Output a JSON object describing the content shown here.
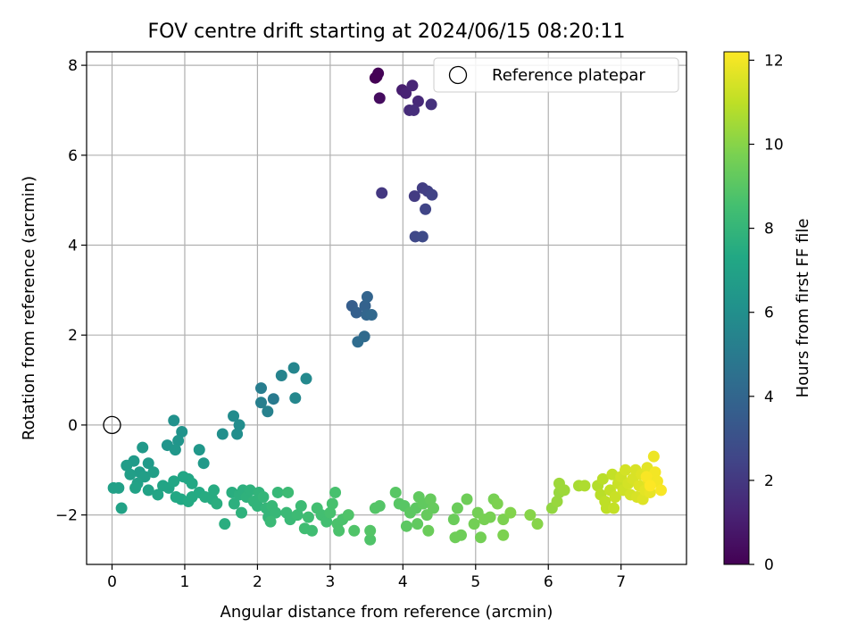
{
  "chart_data": {
    "type": "scatter",
    "title": "FOV centre drift starting at 2024/06/15 08:20:11",
    "xlabel": "Angular distance from reference (arcmin)",
    "ylabel": "Rotation from reference (arcmin)",
    "xlim": [
      -0.35,
      7.9
    ],
    "ylim": [
      -3.1,
      8.3
    ],
    "xticks": [
      0,
      1,
      2,
      3,
      4,
      5,
      6,
      7
    ],
    "yticks": [
      -2,
      0,
      2,
      4,
      6,
      8
    ],
    "grid": true,
    "legend": {
      "entries": [
        "Reference platepar"
      ],
      "placement": "upper-right"
    },
    "reference_point": {
      "x": 0,
      "y": 0,
      "marker": "open-circle"
    },
    "colorbar": {
      "label": "Hours from first FF file",
      "range": [
        0,
        12.2
      ],
      "ticks": [
        0,
        2,
        4,
        6,
        8,
        10,
        12
      ],
      "colormap": "viridis"
    },
    "points": [
      {
        "x": 3.62,
        "y": 7.72,
        "c": 0.0
      },
      {
        "x": 3.66,
        "y": 7.82,
        "c": 0.1
      },
      {
        "x": 3.64,
        "y": 7.75,
        "c": 0.05
      },
      {
        "x": 3.68,
        "y": 7.27,
        "c": 0.4
      },
      {
        "x": 3.99,
        "y": 7.45,
        "c": 1.0
      },
      {
        "x": 4.04,
        "y": 7.38,
        "c": 1.2
      },
      {
        "x": 4.13,
        "y": 7.55,
        "c": 1.3
      },
      {
        "x": 4.21,
        "y": 7.2,
        "c": 1.4
      },
      {
        "x": 4.09,
        "y": 7.0,
        "c": 1.5
      },
      {
        "x": 4.15,
        "y": 7.0,
        "c": 1.6
      },
      {
        "x": 4.39,
        "y": 7.13,
        "c": 1.7
      },
      {
        "x": 3.71,
        "y": 5.16,
        "c": 2.0
      },
      {
        "x": 4.16,
        "y": 5.09,
        "c": 2.1
      },
      {
        "x": 4.27,
        "y": 5.27,
        "c": 2.2
      },
      {
        "x": 4.34,
        "y": 5.2,
        "c": 2.3
      },
      {
        "x": 4.4,
        "y": 5.12,
        "c": 2.4
      },
      {
        "x": 4.31,
        "y": 4.8,
        "c": 2.5
      },
      {
        "x": 4.17,
        "y": 4.19,
        "c": 2.6
      },
      {
        "x": 4.27,
        "y": 4.19,
        "c": 2.7
      },
      {
        "x": 3.3,
        "y": 2.65,
        "c": 3.6
      },
      {
        "x": 3.36,
        "y": 2.5,
        "c": 3.7
      },
      {
        "x": 3.48,
        "y": 2.65,
        "c": 3.8
      },
      {
        "x": 3.51,
        "y": 2.85,
        "c": 3.9
      },
      {
        "x": 3.5,
        "y": 2.45,
        "c": 4.0
      },
      {
        "x": 3.57,
        "y": 2.45,
        "c": 4.1
      },
      {
        "x": 3.47,
        "y": 1.97,
        "c": 4.2
      },
      {
        "x": 3.38,
        "y": 1.85,
        "c": 4.3
      },
      {
        "x": 2.22,
        "y": 0.58,
        "c": 5.0
      },
      {
        "x": 2.05,
        "y": 0.82,
        "c": 5.1
      },
      {
        "x": 2.05,
        "y": 0.5,
        "c": 5.2
      },
      {
        "x": 2.14,
        "y": 0.3,
        "c": 5.3
      },
      {
        "x": 2.33,
        "y": 1.1,
        "c": 5.4
      },
      {
        "x": 2.5,
        "y": 1.27,
        "c": 5.5
      },
      {
        "x": 2.52,
        "y": 0.6,
        "c": 5.6
      },
      {
        "x": 2.67,
        "y": 1.03,
        "c": 5.7
      },
      {
        "x": 1.67,
        "y": 0.2,
        "c": 5.8
      },
      {
        "x": 1.75,
        "y": 0.0,
        "c": 5.9
      },
      {
        "x": 1.72,
        "y": -0.2,
        "c": 5.95
      },
      {
        "x": 1.52,
        "y": -0.2,
        "c": 6.0
      },
      {
        "x": 0.85,
        "y": 0.1,
        "c": 6.1
      },
      {
        "x": 0.96,
        "y": -0.15,
        "c": 6.2
      },
      {
        "x": 0.76,
        "y": -0.45,
        "c": 6.3
      },
      {
        "x": 0.91,
        "y": -0.35,
        "c": 6.3
      },
      {
        "x": 0.87,
        "y": -0.55,
        "c": 6.4
      },
      {
        "x": 1.2,
        "y": -0.55,
        "c": 6.4
      },
      {
        "x": 1.26,
        "y": -0.85,
        "c": 6.5
      },
      {
        "x": 0.42,
        "y": -0.5,
        "c": 6.5
      },
      {
        "x": 0.3,
        "y": -0.8,
        "c": 6.6
      },
      {
        "x": 0.5,
        "y": -0.85,
        "c": 6.6
      },
      {
        "x": 0.2,
        "y": -0.9,
        "c": 6.7
      },
      {
        "x": 0.38,
        "y": -1.05,
        "c": 6.7
      },
      {
        "x": 0.25,
        "y": -1.1,
        "c": 6.8
      },
      {
        "x": 0.45,
        "y": -1.15,
        "c": 6.8
      },
      {
        "x": 0.57,
        "y": -1.05,
        "c": 6.8
      },
      {
        "x": 0.35,
        "y": -1.3,
        "c": 6.9
      },
      {
        "x": 0.02,
        "y": -1.4,
        "c": 6.9
      },
      {
        "x": 0.09,
        "y": -1.4,
        "c": 6.9
      },
      {
        "x": 0.13,
        "y": -1.85,
        "c": 7.0
      },
      {
        "x": 0.32,
        "y": -1.4,
        "c": 7.0
      },
      {
        "x": 0.5,
        "y": -1.45,
        "c": 7.0
      },
      {
        "x": 0.63,
        "y": -1.55,
        "c": 7.1
      },
      {
        "x": 0.7,
        "y": -1.35,
        "c": 7.1
      },
      {
        "x": 0.78,
        "y": -1.4,
        "c": 7.1
      },
      {
        "x": 0.85,
        "y": -1.25,
        "c": 7.2
      },
      {
        "x": 0.98,
        "y": -1.15,
        "c": 7.2
      },
      {
        "x": 1.05,
        "y": -1.2,
        "c": 7.2
      },
      {
        "x": 1.1,
        "y": -1.3,
        "c": 7.3
      },
      {
        "x": 0.88,
        "y": -1.6,
        "c": 7.3
      },
      {
        "x": 0.95,
        "y": -1.65,
        "c": 7.3
      },
      {
        "x": 1.05,
        "y": -1.7,
        "c": 7.4
      },
      {
        "x": 1.1,
        "y": -1.6,
        "c": 7.4
      },
      {
        "x": 1.2,
        "y": -1.5,
        "c": 7.4
      },
      {
        "x": 1.28,
        "y": -1.6,
        "c": 7.5
      },
      {
        "x": 1.38,
        "y": -1.65,
        "c": 7.5
      },
      {
        "x": 1.4,
        "y": -1.45,
        "c": 7.5
      },
      {
        "x": 1.44,
        "y": -1.75,
        "c": 7.6
      },
      {
        "x": 1.55,
        "y": -2.2,
        "c": 7.6
      },
      {
        "x": 1.65,
        "y": -1.5,
        "c": 7.6
      },
      {
        "x": 1.68,
        "y": -1.75,
        "c": 7.7
      },
      {
        "x": 1.75,
        "y": -1.55,
        "c": 7.7
      },
      {
        "x": 1.8,
        "y": -1.45,
        "c": 7.7
      },
      {
        "x": 1.85,
        "y": -1.6,
        "c": 7.8
      },
      {
        "x": 1.78,
        "y": -1.95,
        "c": 7.8
      },
      {
        "x": 1.9,
        "y": -1.45,
        "c": 7.8
      },
      {
        "x": 1.95,
        "y": -1.7,
        "c": 7.9
      },
      {
        "x": 2.0,
        "y": -1.8,
        "c": 7.9
      },
      {
        "x": 2.02,
        "y": -1.5,
        "c": 7.9
      },
      {
        "x": 2.08,
        "y": -1.6,
        "c": 8.0
      },
      {
        "x": 2.12,
        "y": -1.85,
        "c": 8.0
      },
      {
        "x": 2.15,
        "y": -2.05,
        "c": 8.0
      },
      {
        "x": 2.2,
        "y": -1.8,
        "c": 8.1
      },
      {
        "x": 2.25,
        "y": -1.95,
        "c": 8.1
      },
      {
        "x": 2.28,
        "y": -1.5,
        "c": 8.1
      },
      {
        "x": 2.18,
        "y": -2.15,
        "c": 8.2
      },
      {
        "x": 2.4,
        "y": -1.95,
        "c": 8.2
      },
      {
        "x": 2.45,
        "y": -2.1,
        "c": 8.2
      },
      {
        "x": 2.42,
        "y": -1.5,
        "c": 8.3
      },
      {
        "x": 2.55,
        "y": -2.0,
        "c": 8.3
      },
      {
        "x": 2.6,
        "y": -1.8,
        "c": 8.3
      },
      {
        "x": 2.65,
        "y": -2.3,
        "c": 8.4
      },
      {
        "x": 2.7,
        "y": -2.05,
        "c": 8.4
      },
      {
        "x": 2.75,
        "y": -2.35,
        "c": 8.4
      },
      {
        "x": 2.82,
        "y": -1.85,
        "c": 8.5
      },
      {
        "x": 2.88,
        "y": -2.0,
        "c": 8.5
      },
      {
        "x": 2.95,
        "y": -2.15,
        "c": 8.5
      },
      {
        "x": 3.0,
        "y": -1.95,
        "c": 8.6
      },
      {
        "x": 3.03,
        "y": -1.75,
        "c": 8.6
      },
      {
        "x": 3.07,
        "y": -1.5,
        "c": 8.6
      },
      {
        "x": 3.1,
        "y": -2.2,
        "c": 8.7
      },
      {
        "x": 3.12,
        "y": -2.35,
        "c": 8.7
      },
      {
        "x": 3.17,
        "y": -2.1,
        "c": 8.7
      },
      {
        "x": 3.25,
        "y": -2.0,
        "c": 8.8
      },
      {
        "x": 3.33,
        "y": -2.35,
        "c": 8.8
      },
      {
        "x": 3.55,
        "y": -2.55,
        "c": 8.8
      },
      {
        "x": 3.55,
        "y": -2.35,
        "c": 8.9
      },
      {
        "x": 3.62,
        "y": -1.85,
        "c": 8.9
      },
      {
        "x": 3.68,
        "y": -1.8,
        "c": 8.9
      },
      {
        "x": 3.9,
        "y": -1.5,
        "c": 9.0
      },
      {
        "x": 3.95,
        "y": -1.75,
        "c": 9.0
      },
      {
        "x": 4.02,
        "y": -1.8,
        "c": 9.0
      },
      {
        "x": 4.05,
        "y": -2.25,
        "c": 9.1
      },
      {
        "x": 4.1,
        "y": -1.95,
        "c": 9.1
      },
      {
        "x": 4.18,
        "y": -1.85,
        "c": 9.1
      },
      {
        "x": 4.2,
        "y": -2.2,
        "c": 9.2
      },
      {
        "x": 4.22,
        "y": -1.6,
        "c": 9.2
      },
      {
        "x": 4.28,
        "y": -1.75,
        "c": 9.2
      },
      {
        "x": 4.33,
        "y": -2.0,
        "c": 9.3
      },
      {
        "x": 4.38,
        "y": -1.65,
        "c": 9.3
      },
      {
        "x": 4.42,
        "y": -1.85,
        "c": 9.3
      },
      {
        "x": 4.35,
        "y": -2.35,
        "c": 9.4
      },
      {
        "x": 4.7,
        "y": -2.1,
        "c": 9.4
      },
      {
        "x": 4.75,
        "y": -1.85,
        "c": 9.4
      },
      {
        "x": 4.8,
        "y": -2.45,
        "c": 9.5
      },
      {
        "x": 4.72,
        "y": -2.5,
        "c": 9.5
      },
      {
        "x": 4.88,
        "y": -1.65,
        "c": 9.5
      },
      {
        "x": 4.98,
        "y": -2.2,
        "c": 9.6
      },
      {
        "x": 5.03,
        "y": -1.95,
        "c": 9.6
      },
      {
        "x": 5.07,
        "y": -2.5,
        "c": 9.6
      },
      {
        "x": 5.12,
        "y": -2.1,
        "c": 9.7
      },
      {
        "x": 5.2,
        "y": -2.05,
        "c": 9.7
      },
      {
        "x": 5.25,
        "y": -1.65,
        "c": 9.7
      },
      {
        "x": 5.3,
        "y": -1.75,
        "c": 9.8
      },
      {
        "x": 5.38,
        "y": -2.1,
        "c": 9.8
      },
      {
        "x": 5.38,
        "y": -2.45,
        "c": 9.8
      },
      {
        "x": 5.48,
        "y": -1.95,
        "c": 9.9
      },
      {
        "x": 5.75,
        "y": -2.0,
        "c": 10.0
      },
      {
        "x": 5.85,
        "y": -2.2,
        "c": 10.0
      },
      {
        "x": 6.05,
        "y": -1.85,
        "c": 10.2
      },
      {
        "x": 6.12,
        "y": -1.7,
        "c": 10.3
      },
      {
        "x": 6.15,
        "y": -1.5,
        "c": 10.3
      },
      {
        "x": 6.15,
        "y": -1.3,
        "c": 10.4
      },
      {
        "x": 6.22,
        "y": -1.45,
        "c": 10.4
      },
      {
        "x": 6.42,
        "y": -1.35,
        "c": 10.6
      },
      {
        "x": 6.5,
        "y": -1.35,
        "c": 10.7
      },
      {
        "x": 6.68,
        "y": -1.35,
        "c": 10.8
      },
      {
        "x": 6.75,
        "y": -1.2,
        "c": 10.9
      },
      {
        "x": 6.72,
        "y": -1.55,
        "c": 10.9
      },
      {
        "x": 6.78,
        "y": -1.7,
        "c": 11.0
      },
      {
        "x": 6.8,
        "y": -1.85,
        "c": 11.0
      },
      {
        "x": 6.85,
        "y": -1.45,
        "c": 11.1
      },
      {
        "x": 6.88,
        "y": -1.1,
        "c": 11.1
      },
      {
        "x": 6.9,
        "y": -1.85,
        "c": 11.1
      },
      {
        "x": 6.92,
        "y": -1.6,
        "c": 11.2
      },
      {
        "x": 6.96,
        "y": -1.3,
        "c": 11.2
      },
      {
        "x": 7.0,
        "y": -1.15,
        "c": 11.3
      },
      {
        "x": 7.03,
        "y": -1.45,
        "c": 11.3
      },
      {
        "x": 7.06,
        "y": -1.0,
        "c": 11.4
      },
      {
        "x": 7.1,
        "y": -1.3,
        "c": 11.4
      },
      {
        "x": 7.13,
        "y": -1.55,
        "c": 11.4
      },
      {
        "x": 7.16,
        "y": -1.2,
        "c": 11.5
      },
      {
        "x": 7.2,
        "y": -1.0,
        "c": 11.5
      },
      {
        "x": 7.22,
        "y": -1.6,
        "c": 11.5
      },
      {
        "x": 7.25,
        "y": -1.35,
        "c": 11.6
      },
      {
        "x": 7.28,
        "y": -1.1,
        "c": 11.6
      },
      {
        "x": 7.3,
        "y": -1.65,
        "c": 11.6
      },
      {
        "x": 7.33,
        "y": -1.45,
        "c": 11.7
      },
      {
        "x": 7.36,
        "y": -0.95,
        "c": 11.7
      },
      {
        "x": 7.38,
        "y": -1.25,
        "c": 11.8
      },
      {
        "x": 7.4,
        "y": -1.5,
        "c": 11.8
      },
      {
        "x": 7.42,
        "y": -1.3,
        "c": 11.9
      },
      {
        "x": 7.45,
        "y": -0.7,
        "c": 11.9
      },
      {
        "x": 7.47,
        "y": -1.05,
        "c": 12.0
      },
      {
        "x": 7.5,
        "y": -1.25,
        "c": 12.0
      },
      {
        "x": 7.55,
        "y": -1.45,
        "c": 12.1
      },
      {
        "x": 7.35,
        "y": -1.15,
        "c": 12.1
      },
      {
        "x": 7.4,
        "y": -1.35,
        "c": 12.2
      }
    ]
  }
}
